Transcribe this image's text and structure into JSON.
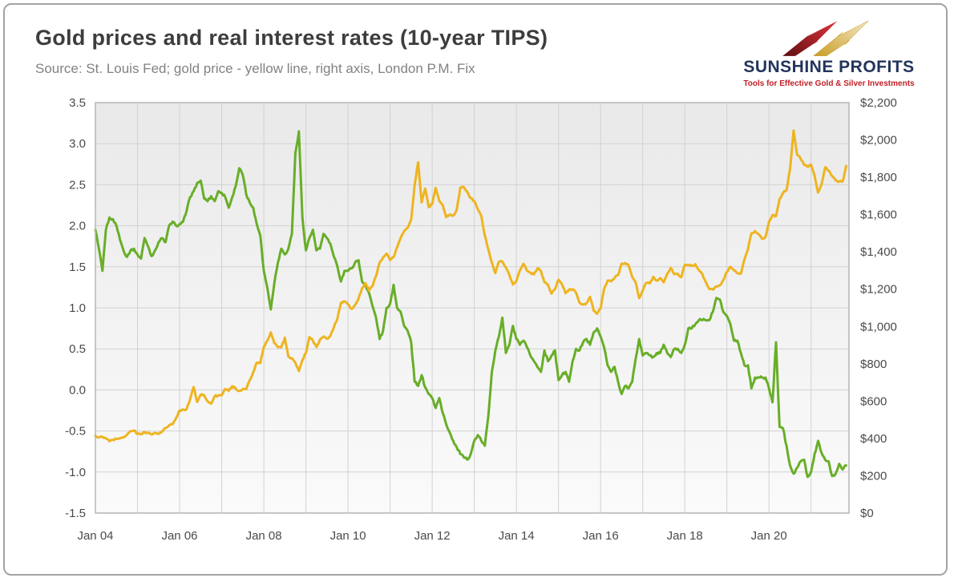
{
  "header": {
    "title": "Gold prices and real interest rates (10-year TIPS)",
    "subtitle": "Source: St. Louis Fed; gold price - yellow line, right axis, London P.M. Fix"
  },
  "logo": {
    "name": "SUNSHINE PROFITS",
    "tagline": "Tools for Effective Gold & Silver Investments"
  },
  "colors": {
    "tips_line": "#68ae27",
    "gold_line": "#eeb420",
    "grid": "#d2d2d2",
    "plot_border": "#b5b5b5",
    "card_border": "#a3a3a3",
    "logo_navy": "#22355c",
    "logo_red": "#c22027"
  },
  "chart_data": {
    "type": "line",
    "title": "Gold prices and real interest rates (10-year TIPS)",
    "source_note": "Source: St. Louis Fed; gold price - yellow line, right axis, London P.M. Fix",
    "grid": true,
    "legend": "none",
    "x_axis": {
      "range": [
        2004,
        2021.9
      ],
      "gridline_years": [
        2004,
        2005,
        2006,
        2007,
        2008,
        2009,
        2010,
        2011,
        2012,
        2013,
        2014,
        2015,
        2016,
        2017,
        2018,
        2019,
        2020,
        2021
      ],
      "tick_values": [
        2004,
        2006,
        2008,
        2010,
        2012,
        2014,
        2016,
        2018,
        2020
      ],
      "tick_labels": [
        "Jan 04",
        "Jan 06",
        "Jan 08",
        "Jan 10",
        "Jan 12",
        "Jan 14",
        "Jan 16",
        "Jan 18",
        "Jan 20"
      ]
    },
    "left_axis": {
      "range": [
        -1.5,
        3.5
      ],
      "tick_values": [
        3.5,
        3.0,
        2.5,
        2.0,
        1.5,
        1.0,
        0.5,
        0.0,
        -0.5,
        -1.0,
        -1.5
      ],
      "tick_labels": [
        "3.5",
        "3.0",
        "2.5",
        "2.0",
        "1.5",
        "1.0",
        "0.5",
        "0.0",
        "-0.5",
        "-1.0",
        "-1.5"
      ]
    },
    "right_axis": {
      "range": [
        0,
        2200
      ],
      "tick_values": [
        2200,
        2000,
        1800,
        1600,
        1400,
        1200,
        1000,
        800,
        600,
        400,
        200,
        0
      ],
      "tick_labels": [
        "$2,200",
        "$2,000",
        "$1,800",
        "$1,600",
        "$1,400",
        "$1,200",
        "$1,000",
        "$800",
        "$600",
        "$400",
        "$200",
        "$0"
      ]
    },
    "series": [
      {
        "id": "tips-real-rate-line",
        "name": "10-year TIPS real interest rate (green line, left axis, %)",
        "axis": "left",
        "color": "#68ae27",
        "noise": 0.03,
        "start": 2004,
        "step": 0.0833333,
        "values": [
          1.95,
          1.72,
          1.45,
          1.95,
          2.1,
          2.08,
          2.0,
          1.83,
          1.7,
          1.62,
          1.7,
          1.72,
          1.65,
          1.6,
          1.85,
          1.75,
          1.63,
          1.7,
          1.8,
          1.85,
          1.8,
          2.0,
          2.05,
          2.0,
          2.02,
          2.05,
          2.18,
          2.35,
          2.42,
          2.52,
          2.55,
          2.33,
          2.3,
          2.36,
          2.3,
          2.42,
          2.4,
          2.35,
          2.22,
          2.35,
          2.48,
          2.7,
          2.62,
          2.38,
          2.28,
          2.22,
          2.02,
          1.88,
          1.45,
          1.25,
          0.98,
          1.3,
          1.55,
          1.72,
          1.65,
          1.72,
          1.9,
          2.88,
          3.15,
          2.1,
          1.7,
          1.85,
          1.95,
          1.7,
          1.72,
          1.9,
          1.85,
          1.78,
          1.62,
          1.5,
          1.32,
          1.45,
          1.45,
          1.48,
          1.55,
          1.58,
          1.32,
          1.28,
          1.18,
          1.02,
          0.88,
          0.62,
          0.72,
          1.0,
          1.05,
          1.28,
          1.0,
          0.95,
          0.78,
          0.72,
          0.58,
          0.1,
          0.05,
          0.18,
          0.03,
          -0.05,
          -0.1,
          -0.22,
          -0.1,
          -0.28,
          -0.42,
          -0.52,
          -0.62,
          -0.7,
          -0.78,
          -0.82,
          -0.85,
          -0.78,
          -0.62,
          -0.55,
          -0.62,
          -0.68,
          -0.32,
          0.22,
          0.48,
          0.65,
          0.88,
          0.45,
          0.55,
          0.78,
          0.62,
          0.55,
          0.6,
          0.52,
          0.42,
          0.35,
          0.28,
          0.22,
          0.48,
          0.35,
          0.42,
          0.48,
          0.12,
          0.18,
          0.22,
          0.1,
          0.35,
          0.5,
          0.48,
          0.58,
          0.62,
          0.55,
          0.7,
          0.75,
          0.65,
          0.52,
          0.3,
          0.22,
          0.28,
          0.1,
          -0.05,
          0.05,
          0.02,
          0.1,
          0.38,
          0.62,
          0.42,
          0.45,
          0.42,
          0.4,
          0.45,
          0.45,
          0.55,
          0.45,
          0.4,
          0.5,
          0.5,
          0.45,
          0.55,
          0.75,
          0.75,
          0.8,
          0.85,
          0.85,
          0.85,
          0.85,
          0.95,
          1.12,
          1.1,
          0.95,
          0.9,
          0.8,
          0.6,
          0.6,
          0.45,
          0.3,
          0.3,
          0.02,
          0.15,
          0.15,
          0.15,
          0.15,
          0.02,
          -0.15,
          0.58,
          -0.45,
          -0.47,
          -0.68,
          -0.92,
          -1.02,
          -0.95,
          -0.87,
          -0.85,
          -1.06,
          -1.0,
          -0.78,
          -0.62,
          -0.77,
          -0.85,
          -0.87,
          -1.05,
          -1.02,
          -0.9,
          -0.97,
          -0.92
        ]
      },
      {
        "id": "gold-price-line",
        "name": "Gold price, London P.M. Fix (yellow line, right axis, USD)",
        "axis": "right",
        "color": "#eeb420",
        "noise": 9,
        "start": 2004,
        "step": 0.0833333,
        "values": [
          415,
          405,
          408,
          400,
          385,
          392,
          398,
          402,
          407,
          420,
          439,
          442,
          424,
          423,
          434,
          429,
          421,
          430,
          424,
          437,
          456,
          470,
          476,
          510,
          550,
          555,
          557,
          611,
          675,
          596,
          634,
          632,
          599,
          586,
          627,
          630,
          631,
          665,
          655,
          680,
          667,
          655,
          665,
          665,
          713,
          755,
          806,
          804,
          890,
          923,
          968,
          910,
          889,
          889,
          940,
          839,
          830,
          807,
          761,
          820,
          858,
          943,
          924,
          890,
          929,
          946,
          934,
          950,
          997,
          1044,
          1127,
          1135,
          1118,
          1095,
          1114,
          1149,
          1205,
          1232,
          1193,
          1216,
          1271,
          1342,
          1370,
          1391,
          1356,
          1373,
          1424,
          1474,
          1511,
          1529,
          1573,
          1756,
          1880,
          1665,
          1739,
          1640,
          1656,
          1743,
          1674,
          1650,
          1586,
          1600,
          1594,
          1626,
          1744,
          1747,
          1721,
          1688,
          1671,
          1628,
          1593,
          1487,
          1414,
          1343,
          1286,
          1347,
          1348,
          1316,
          1276,
          1225,
          1244,
          1301,
          1336,
          1299,
          1288,
          1279,
          1311,
          1297,
          1237,
          1223,
          1176,
          1200,
          1251,
          1227,
          1178,
          1198,
          1199,
          1181,
          1128,
          1117,
          1125,
          1159,
          1086,
          1068,
          1097,
          1200,
          1246,
          1242,
          1261,
          1276,
          1337,
          1340,
          1327,
          1266,
          1236,
          1152,
          1192,
          1234,
          1231,
          1266,
          1246,
          1260,
          1237,
          1283,
          1314,
          1280,
          1282,
          1264,
          1331,
          1330,
          1325,
          1334,
          1303,
          1281,
          1238,
          1201,
          1198,
          1215,
          1221,
          1250,
          1292,
          1320,
          1301,
          1286,
          1284,
          1359,
          1413,
          1499,
          1511,
          1495,
          1471,
          1479,
          1561,
          1597,
          1592,
          1683,
          1716,
          1732,
          1843,
          2050,
          1922,
          1900,
          1866,
          1856,
          1867,
          1808,
          1718,
          1762,
          1853,
          1835,
          1807,
          1784,
          1777,
          1777,
          1860
        ]
      }
    ]
  }
}
